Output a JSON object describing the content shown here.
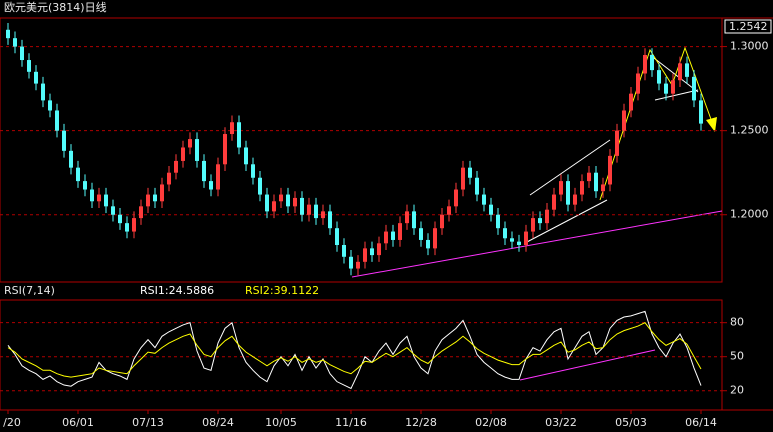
{
  "chart_data": {
    "type": "candlestick",
    "title": "欧元美元(3814)日线",
    "last_price": 1.2542,
    "up_color": "#ff3c3c",
    "down_color": "#54fcfc",
    "ylim": [
      1.16,
      1.317
    ],
    "yticks": [
      {
        "value": 1.2,
        "label": "1.2000"
      },
      {
        "value": 1.25,
        "label": "1.2500"
      },
      {
        "value": 1.3,
        "label": "1.3000"
      }
    ],
    "grid": true,
    "categories": [
      "/20",
      null,
      null,
      null,
      null,
      null,
      null,
      null,
      null,
      null,
      "06/01",
      null,
      null,
      null,
      null,
      null,
      null,
      null,
      null,
      null,
      "07/13",
      null,
      null,
      null,
      null,
      null,
      null,
      null,
      null,
      null,
      "08/24",
      null,
      null,
      null,
      null,
      null,
      null,
      null,
      null,
      "10/05",
      null,
      null,
      null,
      null,
      null,
      null,
      null,
      null,
      null,
      "11/16",
      null,
      null,
      null,
      null,
      null,
      null,
      null,
      null,
      null,
      "12/28",
      null,
      null,
      null,
      null,
      null,
      null,
      null,
      null,
      null,
      "02/08",
      null,
      null,
      null,
      null,
      null,
      null,
      null,
      null,
      null,
      "03/22",
      null,
      null,
      null,
      null,
      null,
      null,
      null,
      null,
      null,
      "05/03",
      null,
      null,
      null,
      null,
      null,
      null,
      null,
      null,
      null,
      "06/14"
    ],
    "open": [
      1.31,
      1.305,
      1.3,
      1.292,
      1.285,
      1.278,
      1.268,
      1.262,
      1.25,
      1.238,
      1.228,
      1.22,
      1.215,
      1.208,
      1.212,
      1.205,
      1.2,
      1.195,
      1.19,
      1.198,
      1.205,
      1.212,
      1.208,
      1.218,
      1.225,
      1.232,
      1.24,
      1.245,
      1.232,
      1.22,
      1.215,
      1.23,
      1.248,
      1.255,
      1.24,
      1.23,
      1.222,
      1.212,
      1.202,
      1.208,
      1.212,
      1.205,
      1.21,
      1.2,
      1.206,
      1.198,
      1.202,
      1.192,
      1.182,
      1.175,
      1.168,
      1.172,
      1.18,
      1.176,
      1.183,
      1.19,
      1.185,
      1.195,
      1.202,
      1.192,
      1.185,
      1.18,
      1.192,
      1.2,
      1.205,
      1.215,
      1.228,
      1.222,
      1.212,
      1.206,
      1.2,
      1.192,
      1.186,
      1.184,
      1.182,
      1.19,
      1.198,
      1.195,
      1.203,
      1.212,
      1.22,
      1.206,
      1.212,
      1.22,
      1.225,
      1.214,
      1.218,
      1.235,
      1.25,
      1.262,
      1.272,
      1.284,
      1.295,
      1.286,
      1.278,
      1.272,
      1.28,
      1.29,
      1.282,
      1.268
    ],
    "high": [
      1.314,
      1.309,
      1.304,
      1.296,
      1.289,
      1.282,
      1.272,
      1.266,
      1.254,
      1.242,
      1.232,
      1.224,
      1.219,
      1.216,
      1.216,
      1.209,
      1.204,
      1.199,
      1.202,
      1.209,
      1.216,
      1.216,
      1.222,
      1.229,
      1.236,
      1.244,
      1.249,
      1.249,
      1.236,
      1.224,
      1.234,
      1.252,
      1.259,
      1.259,
      1.244,
      1.234,
      1.226,
      1.216,
      1.212,
      1.216,
      1.216,
      1.214,
      1.214,
      1.21,
      1.21,
      1.206,
      1.206,
      1.196,
      1.186,
      1.179,
      1.176,
      1.184,
      1.184,
      1.187,
      1.194,
      1.194,
      1.199,
      1.206,
      1.206,
      1.196,
      1.189,
      1.196,
      1.204,
      1.209,
      1.219,
      1.232,
      1.232,
      1.226,
      1.216,
      1.21,
      1.204,
      1.196,
      1.19,
      1.188,
      1.194,
      1.202,
      1.202,
      1.207,
      1.216,
      1.224,
      1.224,
      1.216,
      1.224,
      1.229,
      1.229,
      1.222,
      1.239,
      1.254,
      1.266,
      1.276,
      1.288,
      1.299,
      1.299,
      1.29,
      1.282,
      1.284,
      1.294,
      1.294,
      1.286,
      1.272
    ],
    "low": [
      1.301,
      1.296,
      1.288,
      1.281,
      1.274,
      1.264,
      1.258,
      1.246,
      1.234,
      1.224,
      1.216,
      1.211,
      1.204,
      1.204,
      1.201,
      1.196,
      1.191,
      1.186,
      1.186,
      1.194,
      1.201,
      1.204,
      1.204,
      1.214,
      1.221,
      1.228,
      1.236,
      1.228,
      1.216,
      1.211,
      1.211,
      1.226,
      1.244,
      1.236,
      1.226,
      1.218,
      1.208,
      1.198,
      1.198,
      1.204,
      1.201,
      1.201,
      1.196,
      1.196,
      1.194,
      1.194,
      1.188,
      1.178,
      1.171,
      1.164,
      1.164,
      1.168,
      1.172,
      1.172,
      1.179,
      1.181,
      1.181,
      1.191,
      1.188,
      1.181,
      1.176,
      1.176,
      1.188,
      1.196,
      1.201,
      1.211,
      1.218,
      1.208,
      1.202,
      1.196,
      1.188,
      1.182,
      1.18,
      1.178,
      1.178,
      1.186,
      1.191,
      1.191,
      1.199,
      1.208,
      1.202,
      1.202,
      1.208,
      1.216,
      1.21,
      1.21,
      1.214,
      1.231,
      1.246,
      1.258,
      1.268,
      1.28,
      1.282,
      1.274,
      1.268,
      1.268,
      1.276,
      1.278,
      1.264,
      1.25
    ],
    "close": [
      1.305,
      1.3,
      1.292,
      1.285,
      1.278,
      1.268,
      1.262,
      1.25,
      1.238,
      1.228,
      1.22,
      1.215,
      1.208,
      1.212,
      1.205,
      1.2,
      1.195,
      1.19,
      1.198,
      1.205,
      1.212,
      1.208,
      1.218,
      1.225,
      1.232,
      1.24,
      1.245,
      1.232,
      1.22,
      1.215,
      1.23,
      1.248,
      1.255,
      1.24,
      1.23,
      1.222,
      1.212,
      1.202,
      1.208,
      1.212,
      1.205,
      1.21,
      1.2,
      1.206,
      1.198,
      1.202,
      1.192,
      1.182,
      1.175,
      1.168,
      1.172,
      1.18,
      1.176,
      1.183,
      1.19,
      1.185,
      1.195,
      1.202,
      1.192,
      1.185,
      1.18,
      1.192,
      1.2,
      1.205,
      1.215,
      1.228,
      1.222,
      1.212,
      1.206,
      1.2,
      1.192,
      1.186,
      1.184,
      1.182,
      1.19,
      1.198,
      1.195,
      1.203,
      1.212,
      1.22,
      1.206,
      1.212,
      1.22,
      1.225,
      1.214,
      1.218,
      1.235,
      1.25,
      1.262,
      1.272,
      1.284,
      1.295,
      1.286,
      1.278,
      1.272,
      1.28,
      1.29,
      1.282,
      1.268,
      1.2542
    ],
    "rsi": {
      "type": "line",
      "title": "RSI(7,14)",
      "ylim": [
        3,
        100
      ],
      "yticks": [
        20,
        50,
        80
      ],
      "series": [
        {
          "name": "RSI1:24.5886",
          "color": "#ffffff",
          "values": [
            60,
            52,
            42,
            38,
            35,
            30,
            33,
            28,
            25,
            24,
            28,
            30,
            32,
            45,
            38,
            35,
            33,
            30,
            48,
            58,
            65,
            58,
            68,
            72,
            75,
            78,
            80,
            55,
            40,
            38,
            62,
            75,
            80,
            58,
            45,
            38,
            32,
            28,
            42,
            50,
            42,
            52,
            38,
            50,
            40,
            48,
            35,
            28,
            25,
            22,
            35,
            50,
            45,
            55,
            62,
            52,
            62,
            68,
            50,
            40,
            35,
            55,
            65,
            70,
            75,
            82,
            68,
            52,
            45,
            40,
            35,
            32,
            30,
            30,
            48,
            58,
            55,
            65,
            72,
            75,
            48,
            58,
            68,
            72,
            52,
            58,
            75,
            82,
            85,
            86,
            88,
            90,
            70,
            58,
            50,
            62,
            70,
            58,
            40,
            24.5886
          ]
        },
        {
          "name": "RSI2:39.1122",
          "color": "#ffff00",
          "values": [
            58,
            54,
            48,
            45,
            42,
            38,
            38,
            35,
            33,
            32,
            33,
            34,
            35,
            40,
            38,
            37,
            36,
            35,
            42,
            48,
            54,
            53,
            58,
            62,
            65,
            68,
            70,
            60,
            52,
            50,
            58,
            64,
            68,
            60,
            54,
            50,
            46,
            42,
            46,
            49,
            46,
            50,
            45,
            48,
            45,
            47,
            43,
            40,
            37,
            35,
            40,
            46,
            45,
            49,
            53,
            50,
            54,
            58,
            52,
            47,
            44,
            50,
            55,
            59,
            63,
            68,
            63,
            57,
            53,
            50,
            47,
            45,
            43,
            43,
            48,
            52,
            52,
            56,
            60,
            63,
            54,
            56,
            60,
            63,
            57,
            58,
            65,
            70,
            73,
            75,
            77,
            80,
            72,
            65,
            60,
            63,
            66,
            61,
            50,
            39.1122
          ]
        }
      ]
    }
  }
}
